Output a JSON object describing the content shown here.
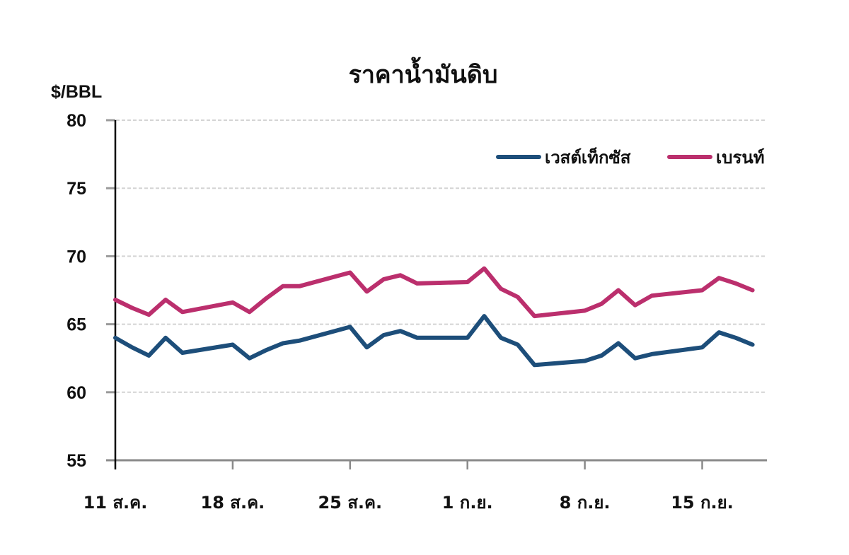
{
  "chart_data": {
    "type": "line",
    "title": "ราคาน้ำมันดิบ",
    "ylabel": "$/BBL",
    "xlabel": "",
    "ylim": [
      55,
      80
    ],
    "yticks": [
      55,
      60,
      65,
      70,
      75,
      80
    ],
    "grid": true,
    "legend_position": "top-right",
    "x_tick_labels": [
      "11 ส.ค.",
      "18 ส.ค.",
      "25 ส.ค.",
      "1 ก.ย.",
      "8 ก.ย.",
      "15 ก.ย."
    ],
    "x_tick_day_offsets": [
      0,
      7,
      14,
      21,
      28,
      35
    ],
    "x": [
      "11 ส.ค.",
      "12 ส.ค.",
      "13 ส.ค.",
      "14 ส.ค.",
      "15 ส.ค.",
      "18 ส.ค.",
      "19 ส.ค.",
      "20 ส.ค.",
      "21 ส.ค.",
      "22 ส.ค.",
      "25 ส.ค.",
      "26 ส.ค.",
      "27 ส.ค.",
      "28 ส.ค.",
      "29 ส.ค.",
      "1 ก.ย.",
      "2 ก.ย.",
      "3 ก.ย.",
      "4 ก.ย.",
      "5 ก.ย.",
      "8 ก.ย.",
      "9 ก.ย.",
      "10 ก.ย.",
      "11 ก.ย.",
      "12 ก.ย.",
      "15 ก.ย.",
      "16 ก.ย.",
      "17 ก.ย.",
      "18 ก.ย."
    ],
    "x_day_offsets": [
      0,
      1,
      2,
      3,
      4,
      7,
      8,
      9,
      10,
      11,
      14,
      15,
      16,
      17,
      18,
      21,
      22,
      23,
      24,
      25,
      28,
      29,
      30,
      31,
      32,
      35,
      36,
      37,
      38
    ],
    "series": [
      {
        "name": "เวสต์เท็กซัส",
        "color": "#1d4e7a",
        "values": [
          64.0,
          63.3,
          62.7,
          64.0,
          62.9,
          63.5,
          62.5,
          63.1,
          63.6,
          63.8,
          64.8,
          63.3,
          64.2,
          64.5,
          64.0,
          64.0,
          65.6,
          64.0,
          63.5,
          62.0,
          62.3,
          62.7,
          63.6,
          62.5,
          62.8,
          63.3,
          64.4,
          64.0,
          63.5
        ]
      },
      {
        "name": "เบรนท์",
        "color": "#bb2f6d",
        "values": [
          66.8,
          66.2,
          65.7,
          66.8,
          65.9,
          66.6,
          65.9,
          66.9,
          67.8,
          67.8,
          68.8,
          67.4,
          68.3,
          68.6,
          68.0,
          68.1,
          69.1,
          67.6,
          67.0,
          65.6,
          66.0,
          66.5,
          67.5,
          66.4,
          67.1,
          67.5,
          68.4,
          68.0,
          67.5
        ]
      }
    ]
  }
}
